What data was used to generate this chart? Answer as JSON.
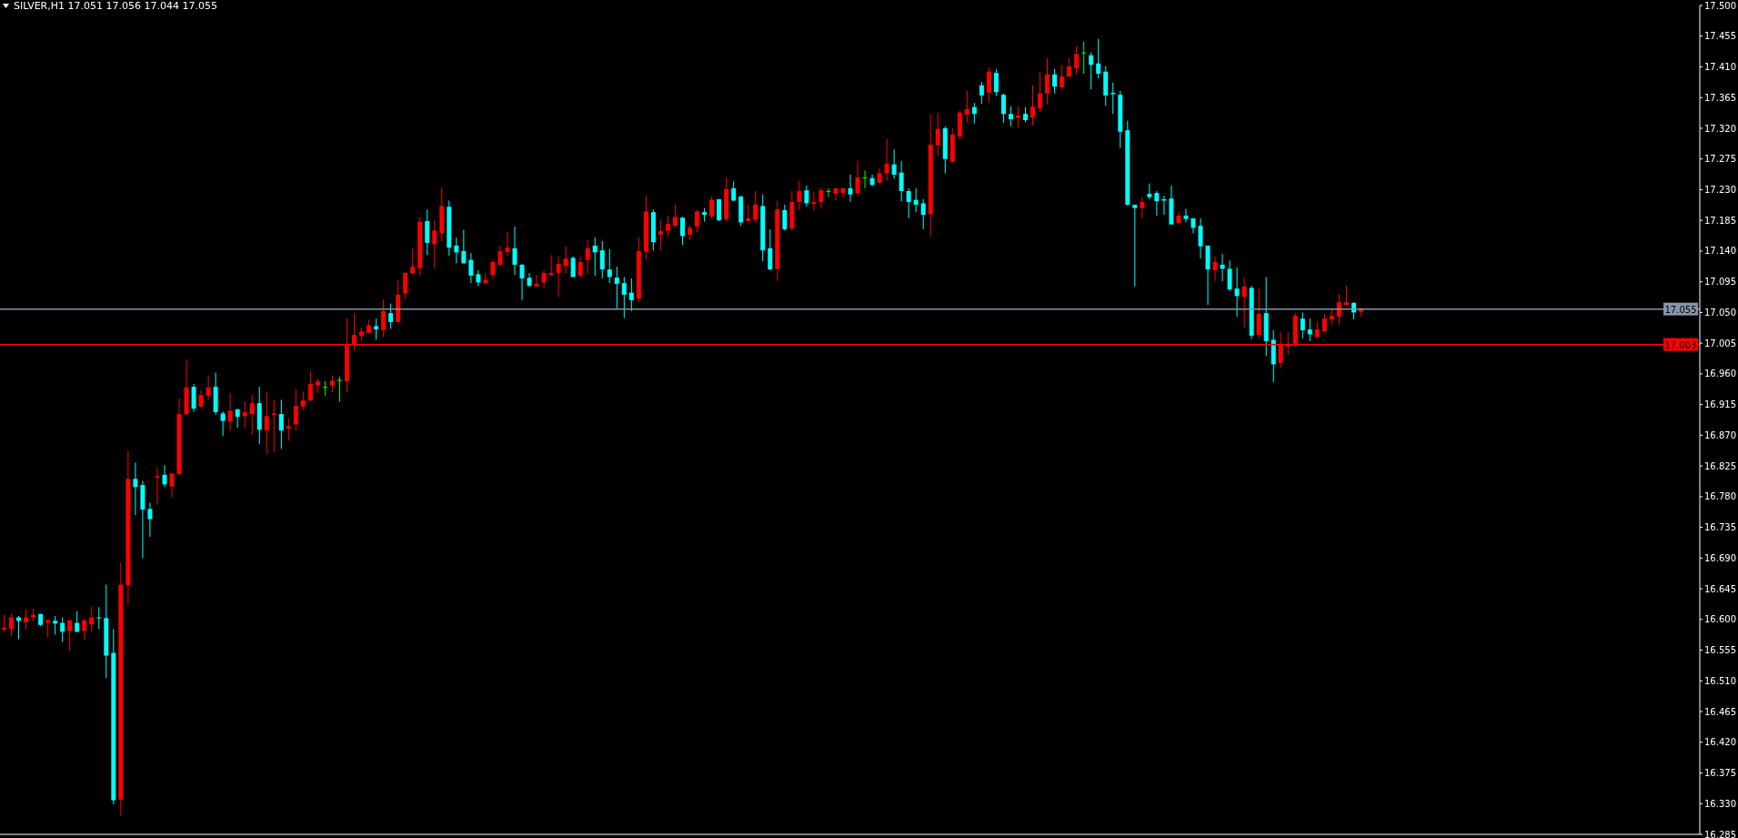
{
  "chart_data": {
    "type": "candlestick",
    "title": "SILVER,H1 17.051 17.056 17.044 17.055",
    "categories": [
      null,
      null,
      null,
      null,
      null,
      null,
      null,
      null,
      null,
      null,
      null,
      null,
      null,
      null,
      null,
      null,
      null,
      null,
      null,
      null,
      null,
      null,
      null,
      null,
      null,
      null,
      null,
      null,
      null,
      null,
      null,
      null,
      null,
      null,
      null,
      null,
      null,
      null,
      null,
      null,
      null,
      null,
      null,
      null,
      null,
      null,
      null,
      null,
      null,
      null,
      null,
      null,
      null,
      null,
      null,
      null,
      null,
      null,
      null,
      null,
      null,
      null,
      null,
      null,
      null,
      null,
      null,
      null,
      null,
      null,
      null,
      null,
      null,
      null,
      null,
      null,
      null,
      null,
      null,
      null,
      null,
      null,
      null,
      null,
      null,
      null,
      null,
      null,
      null,
      null,
      null,
      null,
      null,
      null,
      null,
      null,
      null,
      null,
      null,
      null,
      null,
      null,
      null,
      null,
      null,
      null,
      null,
      null,
      null,
      null,
      null,
      null,
      null,
      null,
      null,
      null,
      null,
      null,
      null,
      null,
      null,
      null,
      null,
      null,
      null,
      null,
      null,
      null,
      null,
      null,
      null,
      null,
      null,
      null,
      null,
      null,
      null,
      null,
      null,
      null,
      null,
      null,
      null,
      null,
      null,
      null,
      null,
      null,
      null,
      null,
      null,
      null,
      null,
      null,
      null,
      null,
      null,
      null,
      null,
      null,
      null,
      null,
      null,
      null,
      null,
      null,
      null,
      null,
      null,
      null,
      null,
      null,
      null,
      null,
      null,
      null,
      null,
      null,
      null,
      null,
      null,
      null,
      null,
      null,
      null,
      null,
      null,
      null,
      null,
      null,
      null,
      null,
      null,
      null,
      null,
      null,
      null,
      null,
      null,
      null,
      null,
      null,
      null,
      null,
      null,
      null,
      null,
      null,
      null,
      null,
      null,
      null,
      null,
      null,
      null,
      null,
      null,
      null,
      null,
      null,
      null,
      null,
      null,
      null,
      null,
      null,
      null,
      null,
      null,
      null,
      null,
      null,
      null
    ],
    "ohlc": [
      [
        16.585,
        16.607,
        16.582,
        16.588
      ],
      [
        16.586,
        16.608,
        16.576,
        16.603
      ],
      [
        16.603,
        16.605,
        16.571,
        16.598
      ],
      [
        16.596,
        16.615,
        16.586,
        16.603
      ],
      [
        16.603,
        16.616,
        16.598,
        16.607
      ],
      [
        16.608,
        16.608,
        16.59,
        16.592
      ],
      [
        16.595,
        16.6,
        16.574,
        16.599
      ],
      [
        16.598,
        16.605,
        16.578,
        16.594
      ],
      [
        16.595,
        16.603,
        16.567,
        16.582
      ],
      [
        16.583,
        16.599,
        16.554,
        16.599
      ],
      [
        16.595,
        16.612,
        16.581,
        16.582
      ],
      [
        16.583,
        16.599,
        16.57,
        16.599
      ],
      [
        16.593,
        16.619,
        16.582,
        16.603
      ],
      [
        16.603,
        16.618,
        16.586,
        16.602
      ],
      [
        16.602,
        16.651,
        16.514,
        16.547
      ],
      [
        16.551,
        16.586,
        16.329,
        16.335
      ],
      [
        16.336,
        16.683,
        16.312,
        16.651
      ],
      [
        16.65,
        16.847,
        16.622,
        16.806
      ],
      [
        16.806,
        16.83,
        16.753,
        16.794
      ],
      [
        16.797,
        16.803,
        16.69,
        16.761
      ],
      [
        16.762,
        16.771,
        16.721,
        16.747
      ],
      [
        16.808,
        16.822,
        16.769,
        16.81
      ],
      [
        16.812,
        16.826,
        16.794,
        16.798
      ],
      [
        16.795,
        16.814,
        16.779,
        16.814
      ],
      [
        16.813,
        16.924,
        16.813,
        16.901
      ],
      [
        16.901,
        16.981,
        16.9,
        16.94
      ],
      [
        16.941,
        16.945,
        16.904,
        16.909
      ],
      [
        16.912,
        16.936,
        16.91,
        16.929
      ],
      [
        16.928,
        16.957,
        16.922,
        16.94
      ],
      [
        16.941,
        16.962,
        16.9,
        16.904
      ],
      [
        16.902,
        16.905,
        16.869,
        16.891
      ],
      [
        16.89,
        16.932,
        16.877,
        16.906
      ],
      [
        16.908,
        16.909,
        16.881,
        16.897
      ],
      [
        16.898,
        16.92,
        16.881,
        16.904
      ],
      [
        16.901,
        16.929,
        16.871,
        16.917
      ],
      [
        16.917,
        16.941,
        16.857,
        16.878
      ],
      [
        16.877,
        16.933,
        16.842,
        16.898
      ],
      [
        16.9,
        16.922,
        16.845,
        16.902
      ],
      [
        16.901,
        16.922,
        16.85,
        16.877
      ],
      [
        16.88,
        16.895,
        16.862,
        16.883
      ],
      [
        16.886,
        16.938,
        16.877,
        16.913
      ],
      [
        16.912,
        16.934,
        16.907,
        16.921
      ],
      [
        16.921,
        16.964,
        16.92,
        16.945
      ],
      [
        16.943,
        16.953,
        16.932,
        16.949
      ],
      [
        16.941,
        16.949,
        16.928,
        16.941
      ],
      [
        16.943,
        16.957,
        16.933,
        16.95
      ],
      [
        16.951,
        16.956,
        16.919,
        16.951
      ],
      [
        16.949,
        17.041,
        16.933,
        17.002
      ],
      [
        17.003,
        17.049,
        16.994,
        17.017
      ],
      [
        17.016,
        17.028,
        17.008,
        17.022
      ],
      [
        17.02,
        17.039,
        17.02,
        17.031
      ],
      [
        17.03,
        17.041,
        17.01,
        17.025
      ],
      [
        17.024,
        17.069,
        17.014,
        17.052
      ],
      [
        17.049,
        17.063,
        17.026,
        17.036
      ],
      [
        17.036,
        17.097,
        17.036,
        17.076
      ],
      [
        17.078,
        17.109,
        17.069,
        17.108
      ],
      [
        17.107,
        17.144,
        17.107,
        17.117
      ],
      [
        17.115,
        17.189,
        17.104,
        17.183
      ],
      [
        17.184,
        17.201,
        17.134,
        17.152
      ],
      [
        17.15,
        17.185,
        17.115,
        17.17
      ],
      [
        17.166,
        17.232,
        17.154,
        17.206
      ],
      [
        17.205,
        17.214,
        17.133,
        17.145
      ],
      [
        17.148,
        17.16,
        17.122,
        17.138
      ],
      [
        17.14,
        17.171,
        17.122,
        17.122
      ],
      [
        17.127,
        17.137,
        17.093,
        17.104
      ],
      [
        17.106,
        17.112,
        17.088,
        17.094
      ],
      [
        17.093,
        17.108,
        17.092,
        17.098
      ],
      [
        17.105,
        17.128,
        17.099,
        17.124
      ],
      [
        17.12,
        17.148,
        17.119,
        17.14
      ],
      [
        17.139,
        17.168,
        17.133,
        17.145
      ],
      [
        17.144,
        17.176,
        17.105,
        17.12
      ],
      [
        17.12,
        17.121,
        17.068,
        17.1
      ],
      [
        17.101,
        17.108,
        17.088,
        17.089
      ],
      [
        17.088,
        17.105,
        17.088,
        17.092
      ],
      [
        17.094,
        17.112,
        17.085,
        17.108
      ],
      [
        17.105,
        17.134,
        17.104,
        17.108
      ],
      [
        17.108,
        17.132,
        17.073,
        17.121
      ],
      [
        17.118,
        17.147,
        17.108,
        17.129
      ],
      [
        17.13,
        17.132,
        17.102,
        17.102
      ],
      [
        17.104,
        17.132,
        17.101,
        17.124
      ],
      [
        17.127,
        17.156,
        17.107,
        17.144
      ],
      [
        17.148,
        17.16,
        17.104,
        17.138
      ],
      [
        17.141,
        17.155,
        17.1,
        17.113
      ],
      [
        17.113,
        17.143,
        17.093,
        17.102
      ],
      [
        17.101,
        17.117,
        17.056,
        17.092
      ],
      [
        17.093,
        17.102,
        17.042,
        17.076
      ],
      [
        17.079,
        17.1,
        17.052,
        17.068
      ],
      [
        17.07,
        17.16,
        17.065,
        17.14
      ],
      [
        17.139,
        17.221,
        17.128,
        17.198
      ],
      [
        17.197,
        17.201,
        17.141,
        17.153
      ],
      [
        17.164,
        17.185,
        17.141,
        17.169
      ],
      [
        17.17,
        17.192,
        17.161,
        17.18
      ],
      [
        17.177,
        17.208,
        17.175,
        17.19
      ],
      [
        17.189,
        17.19,
        17.149,
        17.162
      ],
      [
        17.164,
        17.177,
        17.156,
        17.174
      ],
      [
        17.176,
        17.2,
        17.168,
        17.198
      ],
      [
        17.197,
        17.203,
        17.183,
        17.193
      ],
      [
        17.191,
        17.22,
        17.188,
        17.215
      ],
      [
        17.216,
        17.216,
        17.184,
        17.185
      ],
      [
        17.187,
        17.248,
        17.184,
        17.231
      ],
      [
        17.232,
        17.242,
        17.213,
        17.214
      ],
      [
        17.22,
        17.221,
        17.177,
        17.182
      ],
      [
        17.184,
        17.209,
        17.184,
        17.188
      ],
      [
        17.186,
        17.228,
        17.181,
        17.208
      ],
      [
        17.206,
        17.223,
        17.125,
        17.141
      ],
      [
        17.144,
        17.172,
        17.112,
        17.113
      ],
      [
        17.114,
        17.213,
        17.096,
        17.201
      ],
      [
        17.2,
        17.208,
        17.17,
        17.172
      ],
      [
        17.173,
        17.228,
        17.17,
        17.212
      ],
      [
        17.212,
        17.243,
        17.2,
        17.228
      ],
      [
        17.229,
        17.236,
        17.205,
        17.21
      ],
      [
        17.209,
        17.227,
        17.2,
        17.212
      ],
      [
        17.212,
        17.233,
        17.202,
        17.229
      ],
      [
        17.228,
        17.232,
        17.219,
        17.228
      ],
      [
        17.224,
        17.232,
        17.214,
        17.232
      ],
      [
        17.225,
        17.233,
        17.218,
        17.232
      ],
      [
        17.232,
        17.252,
        17.212,
        17.223
      ],
      [
        17.225,
        17.272,
        17.221,
        17.248
      ],
      [
        17.248,
        17.258,
        17.232,
        17.248
      ],
      [
        17.247,
        17.252,
        17.235,
        17.237
      ],
      [
        17.24,
        17.262,
        17.24,
        17.254
      ],
      [
        17.254,
        17.304,
        17.243,
        17.268
      ],
      [
        17.267,
        17.289,
        17.246,
        17.252
      ],
      [
        17.255,
        17.272,
        17.213,
        17.228
      ],
      [
        17.228,
        17.232,
        17.188,
        17.212
      ],
      [
        17.215,
        17.232,
        17.197,
        17.208
      ],
      [
        17.21,
        17.216,
        17.172,
        17.193
      ],
      [
        17.194,
        17.34,
        17.162,
        17.296
      ],
      [
        17.295,
        17.343,
        17.28,
        17.319
      ],
      [
        17.32,
        17.323,
        17.254,
        17.275
      ],
      [
        17.271,
        17.32,
        17.269,
        17.311
      ],
      [
        17.308,
        17.346,
        17.303,
        17.343
      ],
      [
        17.34,
        17.375,
        17.328,
        17.348
      ],
      [
        17.351,
        17.357,
        17.327,
        17.341
      ],
      [
        17.383,
        17.388,
        17.356,
        17.368
      ],
      [
        17.372,
        17.409,
        17.357,
        17.403
      ],
      [
        17.401,
        17.407,
        17.367,
        17.373
      ],
      [
        17.369,
        17.371,
        17.328,
        17.341
      ],
      [
        17.341,
        17.352,
        17.323,
        17.333
      ],
      [
        17.335,
        17.352,
        17.321,
        17.339
      ],
      [
        17.341,
        17.351,
        17.329,
        17.332
      ],
      [
        17.336,
        17.383,
        17.324,
        17.352
      ],
      [
        17.349,
        17.403,
        17.344,
        17.371
      ],
      [
        17.371,
        17.423,
        17.355,
        17.399
      ],
      [
        17.399,
        17.407,
        17.371,
        17.381
      ],
      [
        17.38,
        17.412,
        17.377,
        17.396
      ],
      [
        17.396,
        17.423,
        17.395,
        17.411
      ],
      [
        17.408,
        17.44,
        17.399,
        17.429
      ],
      [
        17.431,
        17.447,
        17.4,
        17.431
      ],
      [
        17.427,
        17.431,
        17.377,
        17.413
      ],
      [
        17.415,
        17.451,
        17.393,
        17.4
      ],
      [
        17.403,
        17.411,
        17.353,
        17.368
      ],
      [
        17.372,
        17.387,
        17.341,
        17.37
      ],
      [
        17.369,
        17.375,
        17.291,
        17.315
      ],
      [
        17.317,
        17.331,
        17.206,
        17.208
      ],
      [
        17.208,
        17.208,
        17.088,
        17.203
      ],
      [
        17.203,
        17.219,
        17.187,
        17.212
      ],
      [
        17.224,
        17.239,
        17.216,
        17.219
      ],
      [
        17.225,
        17.228,
        17.192,
        17.213
      ],
      [
        17.216,
        17.221,
        17.193,
        17.214
      ],
      [
        17.217,
        17.236,
        17.179,
        17.179
      ],
      [
        17.181,
        17.197,
        17.179,
        17.192
      ],
      [
        17.192,
        17.202,
        17.182,
        17.187
      ],
      [
        17.188,
        17.188,
        17.166,
        17.174
      ],
      [
        17.177,
        17.188,
        17.129,
        17.147
      ],
      [
        17.148,
        17.148,
        17.061,
        17.113
      ],
      [
        17.112,
        17.132,
        17.096,
        17.124
      ],
      [
        17.12,
        17.136,
        17.096,
        17.114
      ],
      [
        17.114,
        17.126,
        17.081,
        17.084
      ],
      [
        17.085,
        17.116,
        17.044,
        17.074
      ],
      [
        17.073,
        17.101,
        17.028,
        17.088
      ],
      [
        17.086,
        17.089,
        17.011,
        17.016
      ],
      [
        17.017,
        17.085,
        17.012,
        17.048
      ],
      [
        17.049,
        17.102,
        16.986,
        17.008
      ],
      [
        17.01,
        17.024,
        16.948,
        16.974
      ],
      [
        16.976,
        17.021,
        16.968,
        17.004
      ],
      [
        17.0,
        17.021,
        16.988,
        17.004
      ],
      [
        17.004,
        17.049,
        17.0,
        17.045
      ],
      [
        17.041,
        17.05,
        17.012,
        17.024
      ],
      [
        17.025,
        17.041,
        17.008,
        17.018
      ],
      [
        17.014,
        17.037,
        17.012,
        17.025
      ],
      [
        17.022,
        17.048,
        17.022,
        17.041
      ],
      [
        17.04,
        17.056,
        17.032,
        17.045
      ],
      [
        17.044,
        17.077,
        17.032,
        17.065
      ],
      [
        17.061,
        17.089,
        17.06,
        17.065
      ],
      [
        17.064,
        17.065,
        17.04,
        17.05
      ],
      [
        17.051,
        17.057,
        17.044,
        17.055
      ],
      null,
      null,
      null,
      null,
      null,
      null,
      null,
      null,
      null,
      null,
      null,
      null,
      null,
      null,
      null,
      null,
      null,
      null,
      null,
      null,
      null,
      null,
      null,
      null,
      null,
      null,
      null,
      null,
      null,
      null,
      null,
      null,
      null,
      null,
      null,
      null,
      null,
      null,
      null,
      null,
      null,
      null,
      null,
      null,
      null,
      null
    ],
    "colors": [
      "#ff0000",
      "#ff0000",
      "#00ffff",
      "#ff0000",
      "#ff0000",
      "#00ffff",
      "#ff0000",
      "#00ffff",
      "#00ffff",
      "#ff0000",
      "#00ffff",
      "#ff0000",
      "#ff0000",
      "#00ffff",
      "#00ffff",
      "#00ffff",
      "#ff0000",
      "#ff0000",
      "#00ffff",
      "#00ffff",
      "#00ffff",
      "#ff0000",
      "#00ffff",
      "#ff0000",
      "#ff0000",
      "#ff0000",
      "#00ffff",
      "#ff0000",
      "#ff0000",
      "#00ffff",
      "#00ffff",
      "#ff0000",
      "#00ffff",
      "#ff0000",
      "#ff0000",
      "#00ffff",
      "#ff0000",
      "#ff0000",
      "#00ffff",
      "#ff0000",
      "#ff0000",
      "#ff0000",
      "#ff0000",
      "#ff0000",
      "#00ff00",
      "#ff0000",
      "#00ff00",
      "#ff0000",
      "#ff0000",
      "#ff0000",
      "#ff0000",
      "#00ffff",
      "#ff0000",
      "#00ffff",
      "#ff0000",
      "#ff0000",
      "#ff0000",
      "#ff0000",
      "#00ffff",
      "#ff0000",
      "#ff0000",
      "#00ffff",
      "#00ffff",
      "#00ffff",
      "#00ffff",
      "#00ffff",
      "#ff0000",
      "#ff0000",
      "#ff0000",
      "#ff0000",
      "#00ffff",
      "#00ffff",
      "#00ffff",
      "#ff0000",
      "#ff0000",
      "#ff0000",
      "#ff0000",
      "#ff0000",
      "#00ffff",
      "#ff0000",
      "#ff0000",
      "#00ffff",
      "#00ffff",
      "#00ffff",
      "#00ffff",
      "#00ffff",
      "#00ffff",
      "#ff0000",
      "#ff0000",
      "#00ffff",
      "#ff0000",
      "#ff0000",
      "#ff0000",
      "#00ffff",
      "#ff0000",
      "#ff0000",
      "#00ffff",
      "#ff0000",
      "#00ffff",
      "#ff0000",
      "#00ffff",
      "#00ffff",
      "#ff0000",
      "#ff0000",
      "#00ffff",
      "#00ffff",
      "#ff0000",
      "#00ffff",
      "#ff0000",
      "#ff0000",
      "#00ffff",
      "#ff0000",
      "#ff0000",
      "#00ff00",
      "#ff0000",
      "#ff0000",
      "#00ffff",
      "#ff0000",
      "#00ff00",
      "#00ffff",
      "#ff0000",
      "#ff0000",
      "#00ffff",
      "#00ffff",
      "#00ffff",
      "#00ffff",
      "#00ffff",
      "#ff0000",
      "#ff0000",
      "#00ffff",
      "#ff0000",
      "#ff0000",
      "#ff0000",
      "#00ffff",
      "#00ffff",
      "#ff0000",
      "#00ffff",
      "#00ffff",
      "#00ffff",
      "#ff0000",
      "#00ffff",
      "#ff0000",
      "#ff0000",
      "#ff0000",
      "#00ffff",
      "#ff0000",
      "#ff0000",
      "#ff0000",
      "#00ff00",
      "#00ffff",
      "#00ffff",
      "#00ffff",
      "#00ffff",
      "#00ffff",
      "#00ffff",
      "#00ffff",
      "#ff0000",
      "#00ffff",
      "#00ffff",
      "#00ffff",
      "#00ffff",
      "#ff0000",
      "#00ffff",
      "#00ffff",
      "#00ffff",
      "#00ffff",
      "#ff0000",
      "#00ffff",
      "#00ffff",
      "#00ffff",
      "#ff0000",
      "#00ffff",
      "#ff0000",
      "#00ffff",
      "#00ffff",
      "#ff0000",
      "#ff0000",
      "#ff0000",
      "#00ffff",
      "#00ffff",
      "#ff0000",
      "#ff0000",
      "#ff0000",
      "#ff0000",
      "#ff0000",
      "#00ffff",
      "#ff0000",
      null,
      null,
      null,
      null,
      null,
      null,
      null,
      null,
      null,
      null,
      null,
      null,
      null,
      null,
      null,
      null,
      null,
      null,
      null,
      null,
      null,
      null,
      null,
      null,
      null,
      null,
      null,
      null,
      null,
      null,
      null,
      null,
      null,
      null,
      null,
      null,
      null,
      null,
      null,
      null,
      null,
      null,
      null,
      null,
      null,
      null
    ],
    "ylim": [
      16.285,
      17.5
    ],
    "yticks": [
      16.285,
      {
        "value": 16.33,
        "label": "16.330"
      },
      16.375,
      {
        "value": 16.42,
        "label": "16.420"
      },
      16.465,
      {
        "value": 16.51,
        "label": "16.510"
      },
      16.555,
      {
        "value": 16.6,
        "label": "16.600"
      },
      16.645,
      {
        "value": 16.69,
        "label": "16.690"
      },
      16.735,
      {
        "value": 16.78,
        "label": "16.780"
      },
      16.825,
      {
        "value": 16.87,
        "label": "16.870"
      },
      16.915,
      {
        "value": 16.96,
        "label": "16.960"
      },
      17.005,
      {
        "value": 17.05,
        "label": "17.050"
      },
      17.095,
      {
        "value": 17.14,
        "label": "17.140"
      },
      17.185,
      {
        "value": 17.23,
        "label": "17.230"
      },
      17.275,
      {
        "value": 17.32,
        "label": "17.320"
      },
      17.365,
      {
        "value": 17.41,
        "label": "17.410"
      },
      17.455,
      {
        "value": 17.5,
        "label": "17.500"
      }
    ],
    "ref_lines": [
      {
        "axis": "y",
        "value": 17.055,
        "label": "17.055",
        "color": "#8894a8"
      },
      {
        "axis": "y",
        "value": 17.003,
        "label": "17.003",
        "color": "#ff0000"
      }
    ],
    "tick_labels": "y"
  }
}
